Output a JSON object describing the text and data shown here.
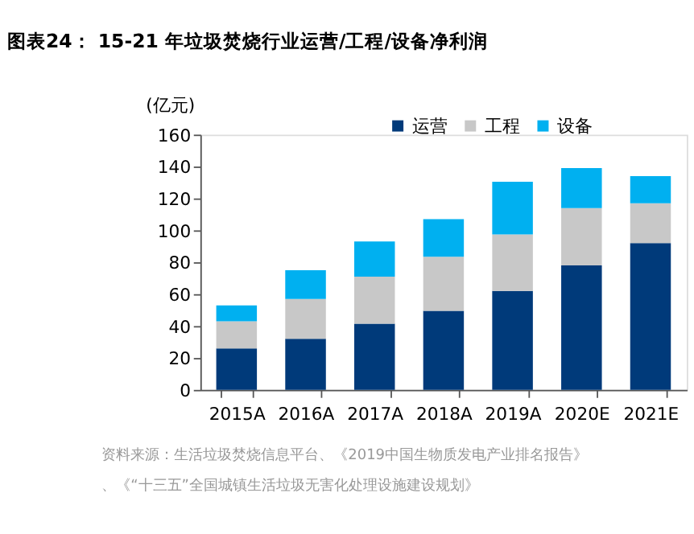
{
  "chart_data": {
    "type": "bar",
    "stacked": true,
    "title": "图表24：  15-21 年垃圾焚烧行业运营/工程/设备净利润",
    "ylabel": "(亿元)",
    "categories": [
      "2015A",
      "2016A",
      "2017A",
      "2018A",
      "2019A",
      "2020E",
      "2021E"
    ],
    "series": [
      {
        "name": "运营",
        "color": "#003a7a",
        "values": [
          26,
          32,
          41.5,
          49.5,
          62,
          78,
          92
        ]
      },
      {
        "name": "工程",
        "color": "#c8c8c8",
        "values": [
          17,
          25,
          29.5,
          34,
          35.5,
          36,
          25
        ]
      },
      {
        "name": "设备",
        "color": "#00b0f0",
        "values": [
          10,
          18,
          22,
          23.5,
          33,
          25,
          17
        ]
      }
    ],
    "ylim": [
      0,
      160
    ],
    "yticks": [
      0,
      20,
      40,
      60,
      80,
      100,
      120,
      140,
      160
    ],
    "grid": false,
    "legend": "top",
    "annotations": [
      "资料来源：生活垃圾焚烧信息平台、《2019中国生物质发电产业排名报告》、《“十三五”全国城镇生活垃圾无害化处理设施建设规划》"
    ]
  }
}
